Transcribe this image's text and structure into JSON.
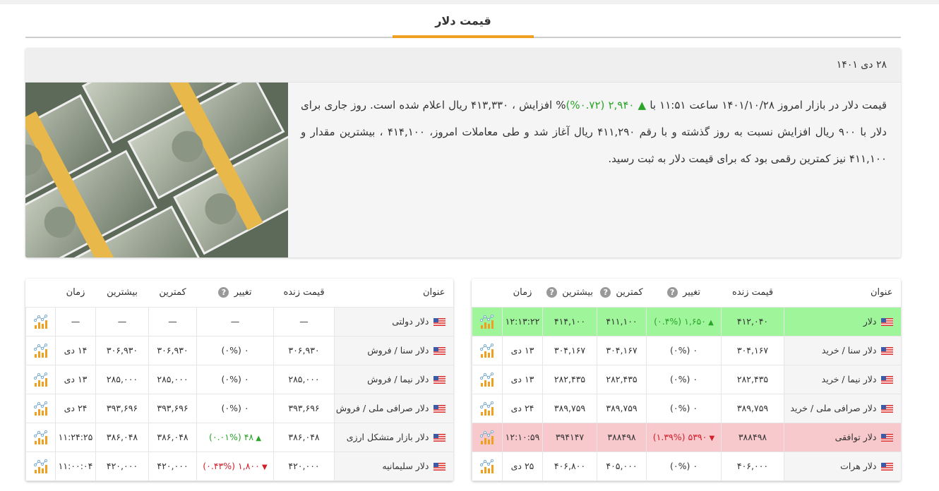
{
  "page": {
    "title": "قیمت دلار"
  },
  "card": {
    "date": "۲۸ دی ۱۴۰۱",
    "text_before": "قیمت دلار در بازار امروز ۱۴۰۱/۱۰/۲۸ ساعت ۱۱:۵۱ با ",
    "change": "۲,۹۴۰ (۰.۷۲%)",
    "text_after": "% افزایش ، ۴۱۳,۳۳۰ ریال اعلام شده است. روز جاری برای دلار با ۹۰۰ ریال افزایش نسبت به روز گذشته و با رقم ۴۱۱,۲۹۰ ریال آغاز شد  و طی معاملات امروز، ۴۱۴,۱۰۰ ، بیشترین مقدار و ۴۱۱,۱۰۰ نیز کمترین رقمی بود که برای قیمت دلار به ثبت رسید."
  },
  "colors": {
    "accent": "#f0a020",
    "up": "#2aa52a",
    "down": "#d0202a",
    "row_up": "#9ef59a",
    "row_down": "#f8c9cc"
  },
  "headers": {
    "title": "عنوان",
    "live": "قیمت زنده",
    "change": "تغییر",
    "min": "کمترین",
    "max": "بیشترین",
    "time": "زمان",
    "help": "?"
  },
  "right_table": [
    {
      "title": "دلار",
      "live": "۴۱۲,۰۴۰",
      "change": "۱,۶۵۰ (۰.۴%)",
      "dir": "up",
      "min": "۴۱۱,۱۰۰",
      "max": "۴۱۴,۱۰۰",
      "time": "۱۲:۱۳:۲۲"
    },
    {
      "title": "دلار سنا / خرید",
      "live": "۳۰۴,۱۶۷",
      "change": "۰ (۰%)",
      "dir": "none",
      "min": "۳۰۴,۱۶۷",
      "max": "۳۰۴,۱۶۷",
      "time": "۱۳ دی"
    },
    {
      "title": "دلار نیما / خرید",
      "live": "۲۸۲,۴۳۵",
      "change": "۰ (۰%)",
      "dir": "none",
      "min": "۲۸۲,۴۳۵",
      "max": "۲۸۲,۴۳۵",
      "time": "۱۳ دی"
    },
    {
      "title": "دلار صرافی ملی / خرید",
      "live": "۳۸۹,۷۵۹",
      "change": "۰ (۰%)",
      "dir": "none",
      "min": "۳۸۹,۷۵۹",
      "max": "۳۸۹,۷۵۹",
      "time": "۲۴ دی"
    },
    {
      "title": "دلار توافقی",
      "live": "۳۸۸۴۹۸",
      "change": "۵۳۹۰ (۱.۳۹%)",
      "dir": "down",
      "min": "۳۸۸۴۹۸",
      "max": "۳۹۴۱۴۷",
      "time": "۱۲:۱۰:۵۹"
    },
    {
      "title": "دلار هرات",
      "live": "۴۰۶,۰۰۰",
      "change": "۰ (۰%)",
      "dir": "none",
      "min": "۴۰۵,۰۰۰",
      "max": "۴۰۶,۸۰۰",
      "time": "۲۵ دی"
    }
  ],
  "left_table": [
    {
      "title": "دلار دولتی",
      "live": "—",
      "change": "—",
      "dir": "none",
      "min": "—",
      "max": "—",
      "time": "—"
    },
    {
      "title": "دلار سنا / فروش",
      "live": "۳۰۶,۹۳۰",
      "change": "۰ (۰%)",
      "dir": "none",
      "min": "۳۰۶,۹۳۰",
      "max": "۳۰۶,۹۳۰",
      "time": "۱۴ دی"
    },
    {
      "title": "دلار نیما / فروش",
      "live": "۲۸۵,۰۰۰",
      "change": "۰ (۰%)",
      "dir": "none",
      "min": "۲۸۵,۰۰۰",
      "max": "۲۸۵,۰۰۰",
      "time": "۱۳ دی"
    },
    {
      "title": "دلار صرافی ملی / فروش",
      "live": "۳۹۳,۶۹۶",
      "change": "۰ (۰%)",
      "dir": "none",
      "min": "۳۹۳,۶۹۶",
      "max": "۳۹۳,۶۹۶",
      "time": "۲۴ دی"
    },
    {
      "title": "دلار بازار متشکل ارزی",
      "live": "۳۸۶,۰۴۸",
      "change": "۴۸ (۰.۰۱%)",
      "dir": "up",
      "min": "۳۸۶,۰۴۸",
      "max": "۳۸۶,۰۴۸",
      "time": "۱۱:۲۴:۲۵"
    },
    {
      "title": "دلار سلیمانیه",
      "live": "۴۲۰,۰۰۰",
      "change": "۱,۸۰۰ (۰.۴۳%)",
      "dir": "down",
      "min": "۴۲۰,۰۰۰",
      "max": "۴۲۰,۰۰۰",
      "time": "۱۱:۰۰:۰۴"
    }
  ]
}
